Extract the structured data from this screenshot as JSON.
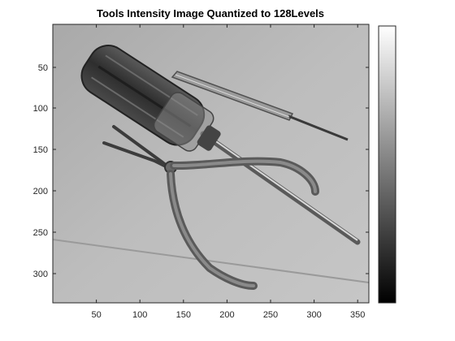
{
  "figure": {
    "title": "Tools Intensity Image Quantized to 128Levels"
  },
  "image_axes": {
    "x_ticks": [
      "50",
      "100",
      "150",
      "200",
      "250",
      "300",
      "350"
    ],
    "y_ticks": [
      "50",
      "100",
      "150",
      "200",
      "250",
      "300"
    ]
  },
  "colorbar": {
    "colormap": "gray",
    "levels": 128
  },
  "image": {
    "subject": "screwdrivers and needle-nose pliers on a table",
    "colors": {
      "background": "#b9b9b9",
      "tool_dark": "#3a3a3a",
      "tool_mid": "#7a7a7a",
      "tool_light": "#d8d8d8"
    }
  }
}
